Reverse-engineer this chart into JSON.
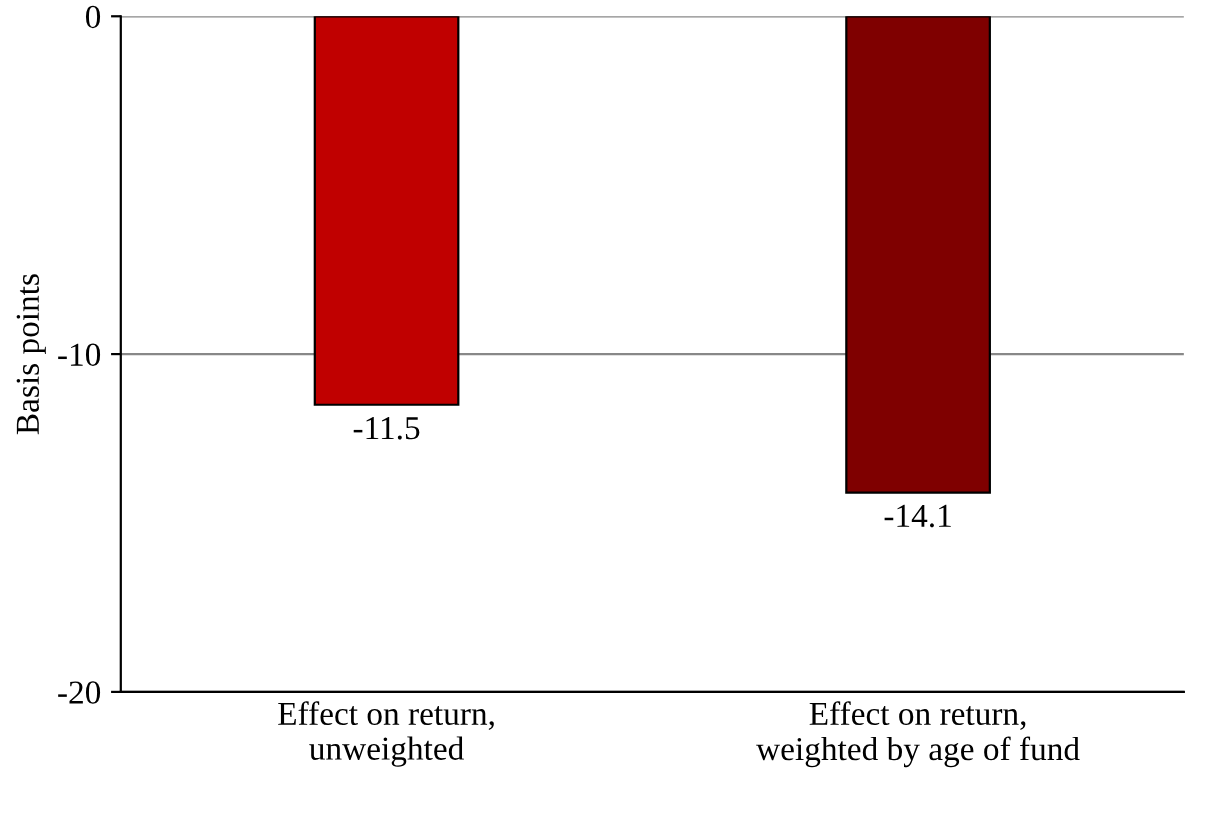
{
  "chart_data": {
    "type": "bar",
    "ylabel": "Basis points",
    "categories": [
      "Effect on return,\nunweighted",
      "Effect on return,\nweighted by age of fund"
    ],
    "values": [
      -11.5,
      -14.1
    ],
    "colors": [
      "#c00000",
      "#7f0000"
    ],
    "ylim": [
      -20,
      0
    ],
    "yticks": [
      0,
      -10,
      -20
    ],
    "grid": "y",
    "data_labels": true
  }
}
